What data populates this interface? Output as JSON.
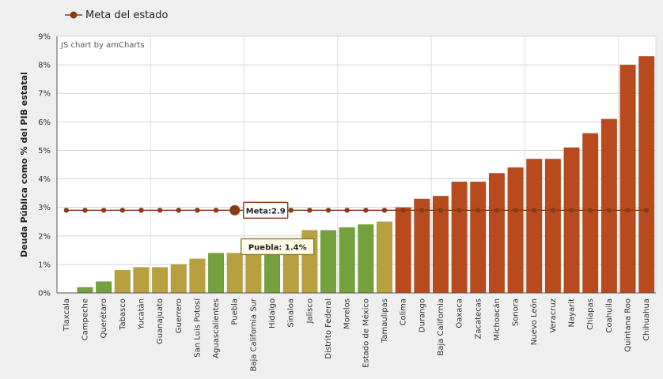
{
  "legend": {
    "label": "Meta del estado"
  },
  "credit": "JS chart by amCharts",
  "colors": {
    "green": "#74a03e",
    "gold": "#b8a03e",
    "red": "#b84a1e",
    "target": "#8a3a14"
  },
  "chart_data": {
    "type": "bar",
    "ylabel": "Deuda Pública como % del PIB estatal",
    "ylim": [
      0,
      9
    ],
    "yticks": [
      "0%",
      "1%",
      "2%",
      "3%",
      "4%",
      "5%",
      "6%",
      "7%",
      "8%",
      "9%"
    ],
    "categories": [
      "Tlaxcala",
      "Campeche",
      "Querétaro",
      "Tabasco",
      "Yucatán",
      "Guanajuato",
      "Guerrero",
      "San Luis Potosí",
      "Aguascalientes",
      "Puebla",
      "Baja California Sur",
      "Hidalgo",
      "Sinaloa",
      "Jalisco",
      "Distrito Federal",
      "Morelos",
      "Estado de México",
      "Tamaulipas",
      "Colima",
      "Durango",
      "Baja California",
      "Oaxaca",
      "Zacatecas",
      "Michoacán",
      "Sonora",
      "Nuevo León",
      "Veracruz",
      "Nayarit",
      "Chiapas",
      "Coahuila",
      "Quintana Roo",
      "Chihuahua"
    ],
    "series": [
      {
        "values": [
          0.0,
          0.2,
          0.4,
          0.8,
          0.9,
          0.9,
          1.0,
          1.2,
          1.4,
          1.4,
          1.7,
          1.9,
          1.9,
          2.2,
          2.2,
          2.3,
          2.4,
          2.5,
          3.0,
          3.3,
          3.4,
          3.9,
          3.9,
          4.2,
          4.4,
          4.7,
          4.7,
          5.1,
          5.6,
          6.1,
          8.0,
          8.3
        ],
        "bar_colors": [
          "green",
          "green",
          "green",
          "gold",
          "gold",
          "gold",
          "gold",
          "gold",
          "green",
          "gold",
          "gold",
          "green",
          "gold",
          "gold",
          "green",
          "green",
          "green",
          "gold",
          "red",
          "red",
          "red",
          "red",
          "red",
          "red",
          "red",
          "red",
          "red",
          "red",
          "red",
          "red",
          "red",
          "red"
        ]
      },
      {
        "name": "Meta del estado",
        "type": "line",
        "value": 2.9
      }
    ],
    "tooltips": [
      {
        "category": "Puebla",
        "text": "Meta:2.9"
      },
      {
        "category": "Puebla",
        "text": "Puebla: 1.4%"
      }
    ],
    "grid": true
  }
}
